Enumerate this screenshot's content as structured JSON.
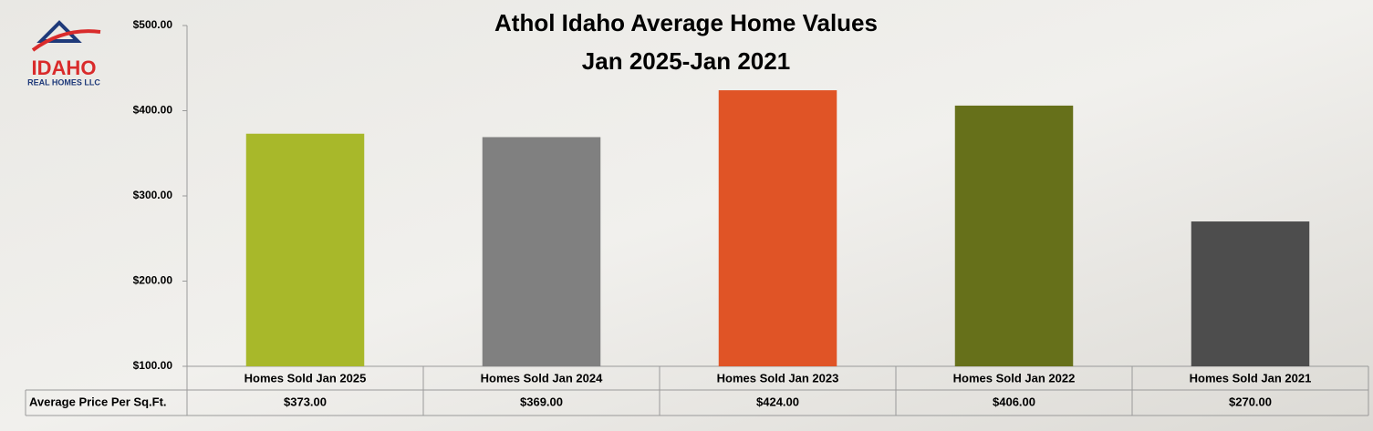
{
  "logo": {
    "name": "IDAHO",
    "tagline": "REAL HOMES LLC"
  },
  "chart_data": {
    "type": "bar",
    "title": "Athol Idaho Average Home Values",
    "subtitle": "Jan 2025-Jan 2021",
    "categories": [
      "Homes Sold Jan 2025",
      "Homes Sold Jan 2024",
      "Homes Sold Jan 2023",
      "Homes Sold Jan 2022",
      "Homes Sold Jan 2021"
    ],
    "series": [
      {
        "name": "Average Price Per Sq.Ft.",
        "colors": [
          "#a8b82a",
          "#808080",
          "#e05426",
          "#66701a",
          "#4d4d4d"
        ],
        "values": [
          373,
          369,
          424,
          406,
          270
        ],
        "value_labels": [
          "$373.00",
          "$369.00",
          "$424.00",
          "$406.00",
          "$270.00"
        ]
      }
    ],
    "ylim": [
      100,
      500
    ],
    "yticks": [
      {
        "value": 100,
        "label": "$100.00"
      },
      {
        "value": 200,
        "label": "$200.00"
      },
      {
        "value": 300,
        "label": "$300.00"
      },
      {
        "value": 400,
        "label": "$400.00"
      },
      {
        "value": 500,
        "label": "$500.00"
      }
    ],
    "grid": false
  }
}
